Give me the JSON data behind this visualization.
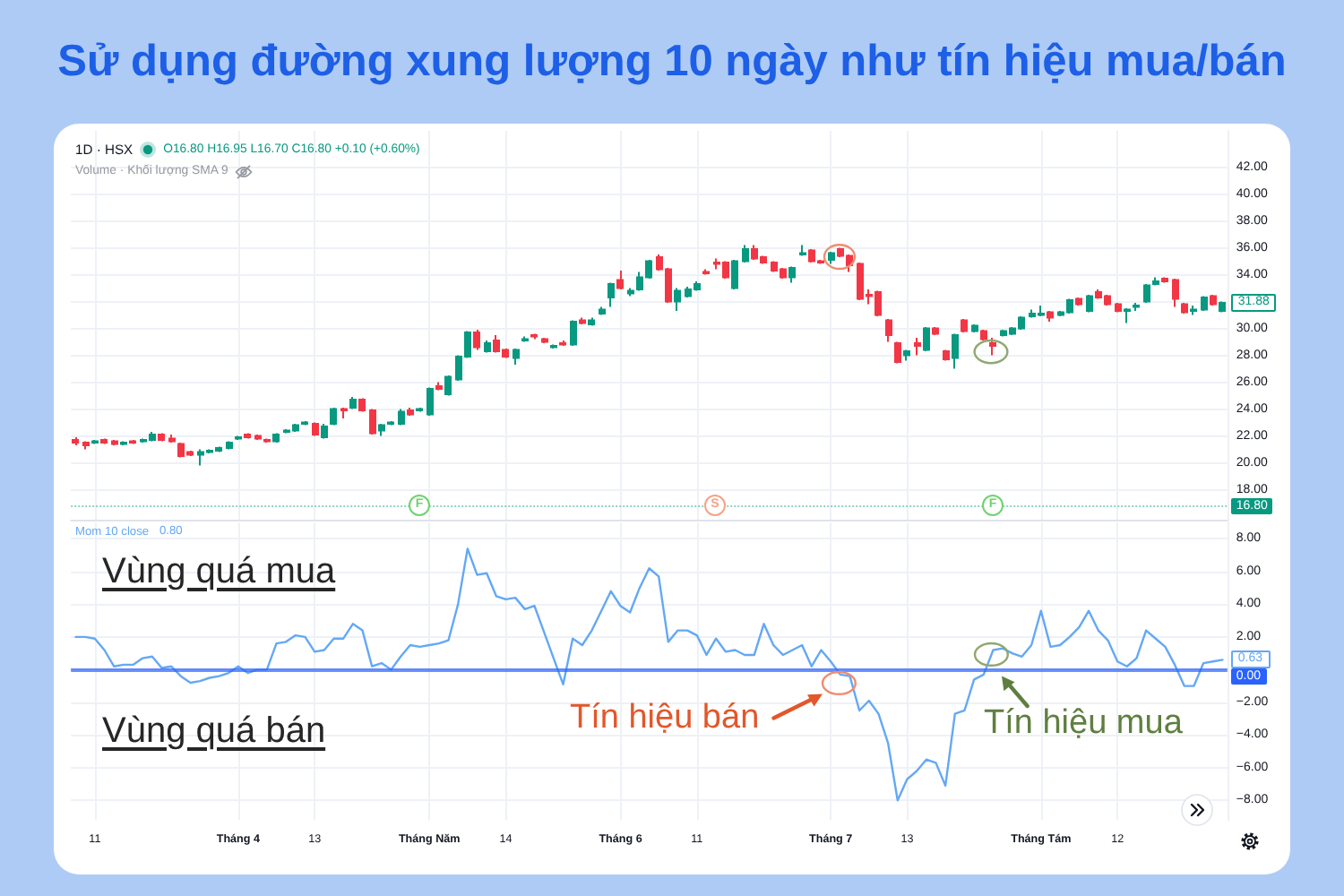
{
  "chart_data": [
    {
      "type": "candlestick",
      "title": "Sử dụng đường xung lượng 10 ngày như tín hiệu mua/bán",
      "subtitle": "1D · HSX",
      "categories": [
        null,
        null,
        null,
        null,
        null,
        null,
        null,
        null,
        null,
        null,
        null,
        null,
        null,
        null,
        null,
        null,
        null,
        null,
        null,
        null,
        null,
        null,
        null,
        null,
        null,
        null,
        null,
        null,
        null,
        null,
        null,
        null,
        null,
        null,
        null,
        null,
        null,
        null,
        null,
        null,
        null,
        null,
        null,
        null,
        null,
        null,
        null,
        null,
        null,
        null,
        null,
        null,
        null,
        null,
        null,
        null,
        null,
        null,
        null,
        null,
        null,
        null,
        null,
        null,
        null,
        null,
        null,
        null,
        null,
        null,
        null,
        null,
        null,
        null,
        null,
        null,
        null,
        null,
        null,
        null,
        null,
        null,
        null,
        null,
        null,
        null,
        null,
        null,
        null,
        null,
        null,
        null,
        null,
        null,
        null,
        null,
        null,
        null,
        null,
        null,
        null,
        null,
        null,
        null,
        null,
        null,
        null,
        null,
        null,
        null,
        null,
        null,
        null,
        null,
        null,
        null,
        null,
        null,
        null,
        null,
        null
      ],
      "ohlc": [
        [
          21.7,
          21.9,
          21.3,
          21.5
        ],
        [
          21.5,
          21.6,
          21.0,
          21.3
        ],
        [
          21.5,
          21.7,
          21.4,
          21.6
        ],
        [
          21.7,
          21.8,
          21.4,
          21.5
        ],
        [
          21.6,
          21.7,
          21.3,
          21.4
        ],
        [
          21.4,
          21.6,
          21.3,
          21.5
        ],
        [
          21.6,
          21.7,
          21.4,
          21.5
        ],
        [
          21.6,
          21.8,
          21.5,
          21.7
        ],
        [
          21.7,
          22.3,
          21.6,
          22.1
        ],
        [
          22.1,
          22.2,
          21.6,
          21.7
        ],
        [
          21.8,
          22.1,
          21.5,
          21.6
        ],
        [
          21.4,
          21.5,
          20.4,
          20.5
        ],
        [
          20.8,
          20.9,
          20.5,
          20.6
        ],
        [
          20.6,
          21.0,
          19.8,
          20.8
        ],
        [
          20.8,
          21.0,
          20.7,
          20.9
        ],
        [
          20.9,
          21.2,
          20.8,
          21.1
        ],
        [
          21.1,
          21.6,
          21.0,
          21.5
        ],
        [
          21.8,
          22.0,
          21.7,
          21.9
        ],
        [
          22.1,
          22.2,
          21.8,
          21.9
        ],
        [
          22.0,
          22.1,
          21.7,
          21.8
        ],
        [
          21.7,
          21.8,
          21.5,
          21.6
        ],
        [
          21.6,
          22.2,
          21.5,
          22.1
        ],
        [
          22.3,
          22.5,
          22.2,
          22.4
        ],
        [
          22.4,
          22.9,
          22.3,
          22.8
        ],
        [
          22.9,
          23.1,
          22.8,
          23.0
        ],
        [
          22.9,
          23.0,
          22.0,
          22.1
        ],
        [
          21.9,
          22.9,
          21.8,
          22.7
        ],
        [
          22.9,
          24.1,
          22.8,
          24.0
        ],
        [
          24.0,
          24.1,
          23.3,
          23.9
        ],
        [
          24.1,
          24.9,
          24.0,
          24.7
        ],
        [
          24.7,
          24.8,
          23.8,
          23.9
        ],
        [
          23.9,
          24.0,
          22.1,
          22.2
        ],
        [
          22.4,
          22.9,
          22.0,
          22.8
        ],
        [
          22.9,
          23.1,
          22.8,
          23.0
        ],
        [
          22.9,
          24.0,
          22.8,
          23.8
        ],
        [
          23.9,
          24.1,
          23.5,
          23.6
        ],
        [
          23.9,
          24.1,
          23.8,
          24.0
        ],
        [
          23.6,
          25.6,
          23.5,
          25.5
        ],
        [
          25.7,
          26.0,
          25.4,
          25.5
        ],
        [
          25.1,
          26.5,
          25.0,
          26.4
        ],
        [
          26.2,
          28.0,
          26.1,
          27.9
        ],
        [
          27.9,
          29.8,
          27.8,
          29.7
        ],
        [
          29.7,
          29.9,
          28.4,
          28.6
        ],
        [
          28.3,
          29.1,
          28.2,
          28.9
        ],
        [
          29.1,
          29.5,
          28.2,
          28.3
        ],
        [
          28.4,
          28.5,
          27.8,
          27.9
        ],
        [
          27.8,
          28.5,
          27.3,
          28.4
        ],
        [
          29.1,
          29.4,
          29.0,
          29.2
        ],
        [
          29.5,
          29.6,
          29.2,
          29.4
        ],
        [
          29.2,
          29.3,
          28.9,
          29.0
        ],
        [
          28.6,
          28.8,
          28.5,
          28.7
        ],
        [
          28.9,
          29.1,
          28.7,
          28.8
        ],
        [
          28.8,
          30.6,
          28.7,
          30.5
        ],
        [
          30.6,
          30.8,
          30.3,
          30.4
        ],
        [
          30.3,
          30.8,
          30.2,
          30.6
        ],
        [
          31.1,
          31.6,
          31.0,
          31.4
        ],
        [
          32.3,
          33.4,
          31.6,
          33.3
        ],
        [
          33.6,
          34.3,
          32.9,
          33.0
        ],
        [
          32.6,
          33.0,
          32.4,
          32.8
        ],
        [
          32.9,
          34.2,
          32.8,
          33.8
        ],
        [
          33.8,
          35.1,
          33.7,
          35.0
        ],
        [
          35.3,
          35.5,
          34.3,
          34.4
        ],
        [
          34.4,
          34.5,
          31.9,
          32.0
        ],
        [
          32.0,
          33.0,
          31.3,
          32.8
        ],
        [
          32.4,
          33.1,
          32.3,
          32.9
        ],
        [
          32.9,
          33.5,
          32.8,
          33.3
        ],
        [
          34.2,
          34.4,
          34.0,
          34.1
        ],
        [
          34.9,
          35.2,
          34.4,
          34.8
        ],
        [
          34.9,
          35.0,
          33.7,
          33.8
        ],
        [
          33.0,
          35.1,
          32.9,
          35.0
        ],
        [
          35.0,
          36.2,
          34.9,
          35.9
        ],
        [
          35.9,
          36.2,
          35.1,
          35.2
        ],
        [
          35.3,
          35.4,
          34.8,
          34.9
        ],
        [
          34.9,
          35.0,
          34.2,
          34.3
        ],
        [
          34.4,
          34.5,
          33.7,
          33.8
        ],
        [
          33.8,
          34.6,
          33.4,
          34.5
        ],
        [
          35.5,
          36.2,
          35.4,
          35.6
        ],
        [
          35.8,
          35.9,
          34.9,
          35.0
        ],
        [
          35.0,
          35.1,
          34.8,
          34.9
        ],
        [
          35.1,
          35.7,
          34.8,
          35.6
        ],
        [
          35.9,
          36.0,
          35.3,
          35.4
        ],
        [
          35.4,
          35.5,
          34.2,
          34.7
        ],
        [
          34.8,
          34.9,
          32.1,
          32.2
        ],
        [
          32.5,
          32.9,
          31.8,
          32.4
        ],
        [
          32.7,
          32.8,
          30.9,
          31.0
        ],
        [
          30.6,
          30.7,
          29.0,
          29.5
        ],
        [
          28.9,
          29.0,
          27.4,
          27.5
        ],
        [
          28.0,
          28.4,
          27.6,
          28.3
        ],
        [
          28.9,
          29.3,
          28.0,
          28.7
        ],
        [
          28.4,
          30.1,
          28.3,
          30.0
        ],
        [
          30.0,
          30.1,
          29.5,
          29.6
        ],
        [
          28.3,
          28.4,
          27.6,
          27.7
        ],
        [
          27.8,
          29.6,
          27.0,
          29.5
        ],
        [
          30.6,
          30.7,
          29.7,
          29.8
        ],
        [
          29.8,
          30.3,
          29.7,
          30.2
        ],
        [
          29.8,
          29.9,
          29.1,
          29.2
        ],
        [
          28.9,
          29.3,
          28.0,
          28.7
        ],
        [
          29.5,
          29.9,
          29.4,
          29.8
        ],
        [
          29.6,
          30.1,
          29.5,
          30.0
        ],
        [
          30.0,
          30.9,
          29.9,
          30.8
        ],
        [
          30.9,
          31.4,
          30.8,
          31.1
        ],
        [
          31.0,
          31.7,
          30.9,
          31.1
        ],
        [
          31.2,
          31.3,
          30.5,
          30.8
        ],
        [
          31.0,
          31.3,
          30.9,
          31.2
        ],
        [
          31.2,
          32.2,
          31.1,
          32.1
        ],
        [
          32.2,
          32.3,
          31.7,
          31.8
        ],
        [
          31.3,
          32.5,
          31.2,
          32.4
        ],
        [
          32.7,
          32.9,
          32.2,
          32.3
        ],
        [
          32.4,
          32.5,
          31.7,
          31.8
        ],
        [
          31.8,
          31.9,
          31.2,
          31.3
        ],
        [
          31.3,
          31.5,
          30.4,
          31.4
        ],
        [
          31.6,
          31.9,
          31.3,
          31.7
        ],
        [
          32.0,
          33.3,
          31.9,
          33.2
        ],
        [
          33.3,
          33.8,
          33.2,
          33.5
        ],
        [
          33.7,
          33.8,
          33.4,
          33.5
        ],
        [
          33.6,
          33.7,
          31.6,
          32.2
        ],
        [
          31.8,
          31.9,
          31.1,
          31.2
        ],
        [
          31.3,
          31.7,
          31.0,
          31.4
        ],
        [
          31.4,
          32.4,
          31.3,
          32.3
        ],
        [
          32.4,
          32.5,
          31.7,
          31.8
        ],
        [
          31.3,
          32.0,
          31.2,
          31.9
        ]
      ],
      "colors": [
        "#f23645",
        "#f23645",
        "#089981",
        "#f23645",
        "#f23645",
        "#089981",
        "#f23645",
        "#089981",
        "#089981",
        "#f23645",
        "#f23645",
        "#f23645",
        "#f23645",
        "#089981",
        "#089981",
        "#089981",
        "#089981",
        "#089981",
        "#f23645",
        "#f23645",
        "#f23645",
        "#089981",
        "#089981",
        "#089981",
        "#089981",
        "#f23645",
        "#089981",
        "#089981",
        "#f23645",
        "#089981",
        "#f23645",
        "#f23645",
        "#089981",
        "#089981",
        "#089981",
        "#f23645",
        "#089981",
        "#089981",
        "#f23645",
        "#089981",
        "#089981",
        "#089981",
        "#f23645",
        "#089981",
        "#f23645",
        "#f23645",
        "#089981",
        "#089981",
        "#f23645",
        "#f23645",
        "#089981",
        "#f23645",
        "#089981",
        "#f23645",
        "#089981",
        "#089981",
        "#089981",
        "#f23645",
        "#089981",
        "#089981",
        "#089981",
        "#f23645",
        "#f23645",
        "#089981",
        "#089981",
        "#089981",
        "#f23645",
        "#f23645",
        "#f23645",
        "#089981",
        "#089981",
        "#f23645",
        "#f23645",
        "#f23645",
        "#f23645",
        "#089981",
        "#089981",
        "#f23645",
        "#f23645",
        "#089981",
        "#f23645",
        "#f23645",
        "#f23645",
        "#f23645",
        "#f23645",
        "#f23645",
        "#f23645",
        "#089981",
        "#f23645",
        "#089981",
        "#f23645",
        "#f23645",
        "#089981",
        "#f23645",
        "#089981",
        "#f23645",
        "#f23645",
        "#089981",
        "#089981",
        "#089981",
        "#089981",
        "#089981",
        "#f23645",
        "#089981",
        "#089981",
        "#f23645",
        "#089981",
        "#f23645",
        "#f23645",
        "#f23645",
        "#089981",
        "#089981",
        "#089981",
        "#089981",
        "#f23645",
        "#f23645",
        "#f23645",
        "#089981",
        "#089981",
        "#f23645",
        "#089981"
      ],
      "ylim": [
        15.7,
        44.7
      ],
      "yticks": [
        {
          "value": 18,
          "label": "18.00"
        },
        {
          "value": 20,
          "label": "20.00"
        },
        {
          "value": 22,
          "label": "22.00"
        },
        {
          "value": 24,
          "label": "24.00"
        },
        {
          "value": 26,
          "label": "26.00"
        },
        {
          "value": 28,
          "label": "28.00"
        },
        {
          "value": 30,
          "label": "30.00"
        },
        {
          "value": 32,
          "label": null
        },
        {
          "value": 34,
          "label": "34.00"
        },
        {
          "value": 36,
          "label": "36.00"
        },
        {
          "value": 38,
          "label": "38.00"
        },
        {
          "value": 40,
          "label": "40.00"
        },
        {
          "value": 42,
          "label": "42.00"
        }
      ],
      "grid": true,
      "tick_labels": "y",
      "ref_lines": [
        {
          "axis": "y",
          "value": 16.8,
          "label": "16.80",
          "color": "#089981",
          "line_style": "dotted"
        }
      ],
      "annotations": [
        "O16.80 H16.95 L16.70 C16.80 +0.10 (+0.60%)",
        "Volume · Khối lượng SMA 9",
        {
          "text": "31.88",
          "y": 31.88
        },
        "F",
        "S",
        "F"
      ]
    },
    {
      "type": "line",
      "categories": [
        null,
        null,
        "11",
        null,
        null,
        null,
        null,
        null,
        null,
        null,
        null,
        null,
        null,
        null,
        null,
        null,
        null,
        "Tháng 4",
        null,
        null,
        null,
        null,
        null,
        null,
        null,
        "13",
        null,
        null,
        null,
        null,
        null,
        null,
        null,
        null,
        null,
        null,
        null,
        "Tháng Năm",
        null,
        null,
        null,
        null,
        null,
        null,
        null,
        "14",
        null,
        null,
        null,
        null,
        null,
        null,
        null,
        null,
        null,
        null,
        null,
        "Tháng 6",
        null,
        null,
        null,
        null,
        null,
        null,
        null,
        "11",
        null,
        null,
        null,
        null,
        null,
        null,
        null,
        null,
        null,
        null,
        null,
        null,
        null,
        "Tháng 7",
        null,
        null,
        null,
        null,
        null,
        null,
        null,
        "13",
        null,
        null,
        null,
        null,
        null,
        null,
        null,
        null,
        null,
        null,
        null,
        null,
        null,
        "Tháng Tám",
        null,
        null,
        null,
        null,
        null,
        null,
        null,
        "12",
        null,
        null,
        null,
        null,
        null,
        null,
        null,
        null,
        null,
        null,
        null
      ],
      "series": [
        {
          "name": "Mom 10 close",
          "color": "#64a8f5",
          "values": [
            2.0,
            2.0,
            1.9,
            1.2,
            0.2,
            0.3,
            0.3,
            0.7,
            0.8,
            0.1,
            0.2,
            -0.4,
            -0.8,
            -0.7,
            -0.5,
            -0.4,
            -0.2,
            0.2,
            -0.2,
            0.0,
            0.0,
            1.6,
            1.7,
            2.1,
            2.0,
            1.1,
            1.2,
            1.9,
            1.9,
            2.8,
            2.4,
            0.2,
            0.4,
            0.0,
            0.8,
            1.5,
            1.4,
            1.5,
            1.6,
            1.8,
            4.0,
            7.4,
            5.8,
            5.9,
            4.5,
            4.3,
            4.4,
            3.7,
            3.9,
            2.3,
            0.7,
            -0.9,
            1.9,
            1.5,
            2.4,
            3.6,
            4.8,
            3.9,
            3.5,
            5.0,
            6.2,
            5.7,
            1.7,
            2.4,
            2.4,
            2.1,
            0.9,
            1.9,
            1.1,
            1.2,
            0.9,
            0.9,
            2.8,
            1.5,
            0.9,
            1.2,
            1.5,
            0.2,
            1.2,
            0.5,
            -0.3,
            -0.4,
            -2.5,
            -1.9,
            -2.7,
            -4.5,
            -8.0,
            -6.7,
            -6.2,
            -5.5,
            -5.7,
            -7.1,
            -2.7,
            -2.5,
            -0.6,
            -0.3,
            1.2,
            1.3,
            1.0,
            0.8,
            1.5,
            3.6,
            1.4,
            1.5,
            2.0,
            2.6,
            3.6,
            2.4,
            1.8,
            0.5,
            0.2,
            0.7,
            2.4,
            1.9,
            1.4,
            0.3,
            -1.0,
            -1.0,
            0.4,
            0.5,
            0.6
          ]
        }
      ],
      "ylim": [
        -9.2,
        9.0
      ],
      "yticks": [
        {
          "value": -8,
          "label": "−8.00"
        },
        {
          "value": -6,
          "label": "−6.00"
        },
        {
          "value": -4,
          "label": "−4.00"
        },
        {
          "value": -2,
          "label": "−2.00"
        },
        {
          "value": 0,
          "label": null
        },
        {
          "value": 2,
          "label": "2.00"
        },
        {
          "value": 4,
          "label": "4.00"
        },
        {
          "value": 6,
          "label": "6.00"
        },
        {
          "value": 8,
          "label": "8.00"
        }
      ],
      "grid": true,
      "legend": "top left",
      "ref_lines": [
        {
          "axis": "y",
          "value": 0,
          "label": "0.00",
          "color": "#2962ff"
        }
      ],
      "annotations": [
        "0.80",
        "Vùng quá mua",
        "Vùng quá bán",
        "Tín hiệu bán",
        "Tín hiệu mua",
        {
          "text": "0.63",
          "y": 0.63
        }
      ]
    }
  ]
}
